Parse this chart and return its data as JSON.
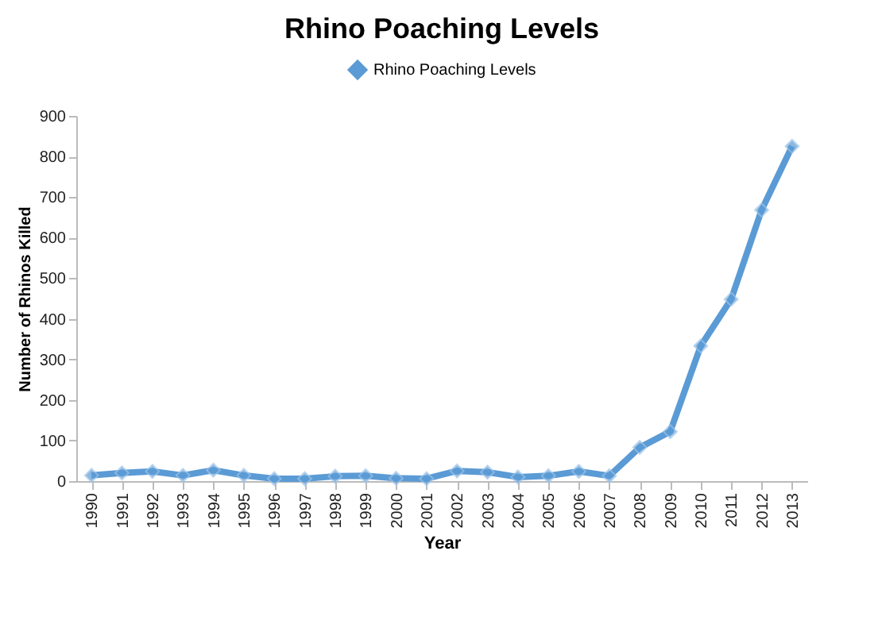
{
  "chart_data": {
    "type": "line",
    "title": "Rhino Poaching Levels",
    "xlabel": "Year",
    "ylabel": "Number of Rhinos Killed",
    "categories": [
      "1990",
      "1991",
      "1992",
      "1993",
      "1994",
      "1995",
      "1996",
      "1997",
      "1998",
      "1999",
      "2000",
      "2001",
      "2002",
      "2003",
      "2004",
      "2005",
      "2006",
      "2007",
      "2008",
      "2009",
      "2010",
      "2011",
      "2012",
      "2013"
    ],
    "series": [
      {
        "name": "Rhino Poaching Levels",
        "color": "#5b9bd5",
        "values": [
          14,
          20,
          24,
          14,
          27,
          14,
          6,
          6,
          12,
          13,
          7,
          6,
          25,
          22,
          10,
          13,
          24,
          13,
          83,
          122,
          333,
          448,
          668,
          825
        ]
      }
    ],
    "ylim": [
      0,
      900
    ],
    "yticks": [
      0,
      100,
      200,
      300,
      400,
      500,
      600,
      700,
      800,
      900
    ],
    "grid": false,
    "legend": "top",
    "marker": "diamond",
    "line_style": "solid"
  }
}
